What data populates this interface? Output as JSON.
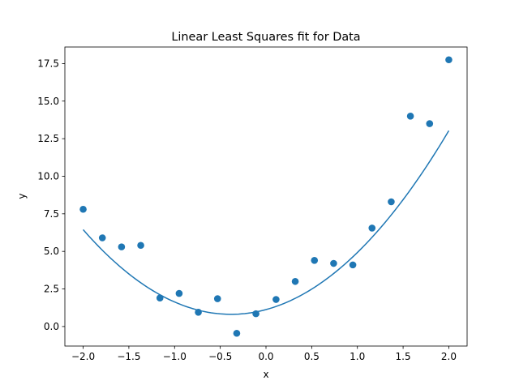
{
  "chart_data": {
    "type": "scatter",
    "title": "Linear Least Squares fit for Data",
    "xlabel": "x",
    "ylabel": "y",
    "xlim": [
      -2.2,
      2.2
    ],
    "ylim": [
      -1.3,
      18.6
    ],
    "xticks": [
      -2.0,
      -1.5,
      -1.0,
      -0.5,
      0.0,
      0.5,
      1.0,
      1.5,
      2.0
    ],
    "xtick_labels": [
      "−2.0",
      "−1.5",
      "−1.0",
      "−0.5",
      "0.0",
      "0.5",
      "1.0",
      "1.5",
      "2.0"
    ],
    "yticks": [
      0.0,
      2.5,
      5.0,
      7.5,
      10.0,
      12.5,
      15.0,
      17.5
    ],
    "ytick_labels": [
      "0.0",
      "2.5",
      "5.0",
      "7.5",
      "10.0",
      "12.5",
      "15.0",
      "17.5"
    ],
    "grid": false,
    "color": "#1f77b4",
    "points": {
      "x": [
        -2.0,
        -1.79,
        -1.58,
        -1.37,
        -1.16,
        -0.95,
        -0.74,
        -0.53,
        -0.32,
        -0.11,
        0.11,
        0.32,
        0.53,
        0.74,
        0.95,
        1.16,
        1.37,
        1.58,
        1.79,
        2.0
      ],
      "y": [
        7.8,
        5.9,
        5.3,
        5.4,
        1.9,
        2.2,
        0.95,
        1.85,
        -0.45,
        0.85,
        1.8,
        3.0,
        4.4,
        4.2,
        4.1,
        6.55,
        8.3,
        14.0,
        13.5,
        17.75
      ]
    },
    "fit": {
      "type": "quadratic",
      "coefficients": [
        2.153,
        1.647,
        1.127
      ],
      "x_range": [
        -2.0,
        2.0
      ]
    }
  }
}
